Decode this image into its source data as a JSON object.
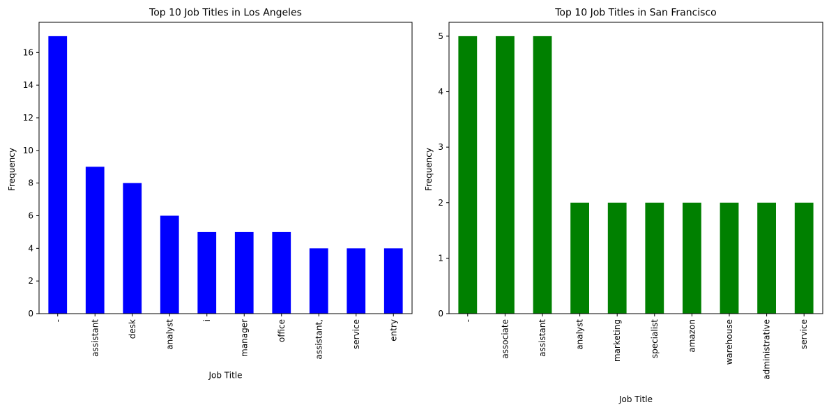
{
  "chart_data": [
    {
      "type": "bar",
      "title": "Top 10 Job Titles in Los Angeles",
      "xlabel": "Job Title",
      "ylabel": "Frequency",
      "categories": [
        "-",
        "assistant",
        "desk",
        "analyst",
        "i",
        "manager",
        "office",
        "assistant,",
        "service",
        "entry"
      ],
      "values": [
        17,
        9,
        8,
        6,
        5,
        5,
        5,
        4,
        4,
        4
      ],
      "ylim": [
        0,
        17.85
      ],
      "yticks": [
        0,
        2,
        4,
        6,
        8,
        10,
        12,
        14,
        16
      ],
      "color": "#0000ff",
      "grid": false,
      "legend": "none"
    },
    {
      "type": "bar",
      "title": "Top 10 Job Titles in San Francisco",
      "xlabel": "Job Title",
      "ylabel": "Frequency",
      "categories": [
        "-",
        "associate",
        "assistant",
        "analyst",
        "marketing",
        "specialist",
        "amazon",
        "warehouse",
        "administrative",
        "service"
      ],
      "values": [
        5,
        5,
        5,
        2,
        2,
        2,
        2,
        2,
        2,
        2
      ],
      "ylim": [
        0,
        5.25
      ],
      "yticks": [
        0,
        1,
        2,
        3,
        4,
        5
      ],
      "color": "#008000",
      "grid": false,
      "legend": "none"
    }
  ]
}
